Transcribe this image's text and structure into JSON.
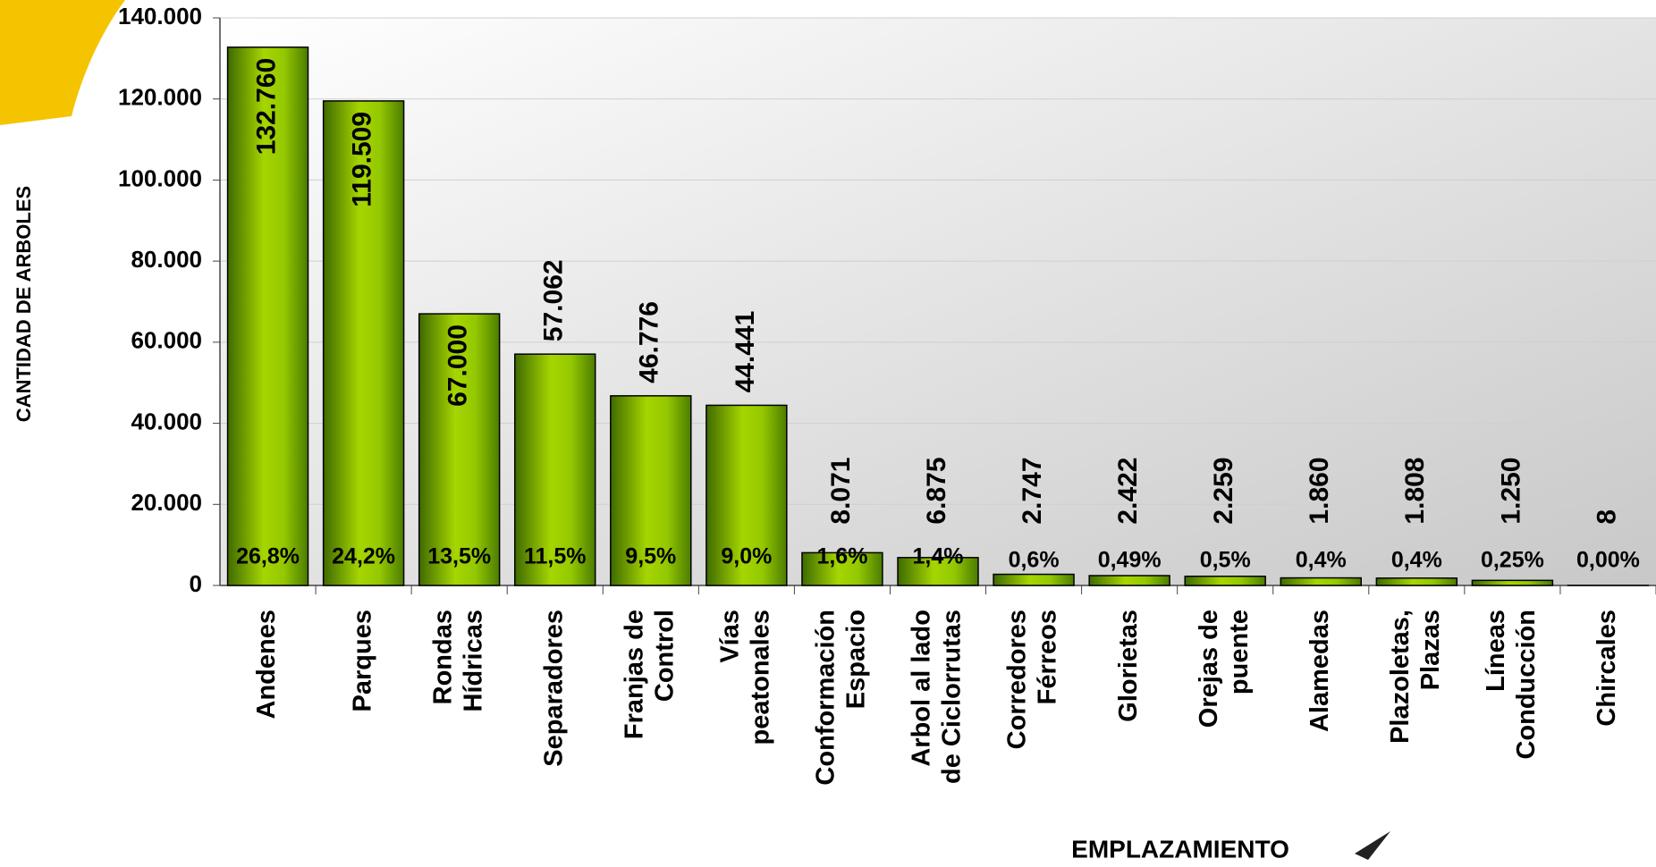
{
  "chart_data": {
    "type": "bar",
    "y_axis_label": "CANTIDAD DE ARBOLES",
    "x_axis_label": "EMPLAZAMIENTO",
    "categories": [
      [
        "Andenes"
      ],
      [
        "Parques"
      ],
      [
        "Rondas",
        "Hídricas"
      ],
      [
        "Separadores"
      ],
      [
        "Franjas de",
        "Control"
      ],
      [
        "Vías",
        "peatonales"
      ],
      [
        "Conformación",
        "Espacio"
      ],
      [
        "Arbol al lado",
        "de Ciclorrutas"
      ],
      [
        "Corredores",
        "Férreos"
      ],
      [
        "Glorietas"
      ],
      [
        "Orejas de",
        "puente"
      ],
      [
        "Alamedas"
      ],
      [
        "Plazoletas,",
        "Plazas"
      ],
      [
        "Líneas",
        "Conducción"
      ],
      [
        "Chircales"
      ]
    ],
    "values": [
      132760,
      119509,
      67000,
      57062,
      46776,
      44441,
      8071,
      6875,
      2747,
      2422,
      2259,
      1860,
      1808,
      1250,
      8
    ],
    "value_labels": [
      "132.760",
      "119.509",
      "67.000",
      "57.062",
      "46.776",
      "44.441",
      "8.071",
      "6.875",
      "2.747",
      "2.422",
      "2.259",
      "1.860",
      "1.808",
      "1.250",
      "8"
    ],
    "percent_labels": [
      "26,8%",
      "24,2%",
      "13,5%",
      "11,5%",
      "9,5%",
      "9,0%",
      "1,6%",
      "1,4%",
      "0,6%",
      "0,49%",
      "0,5%",
      "0,4%",
      "0,4%",
      "0,25%",
      "0,00%"
    ],
    "color": "#7fb200",
    "ylim": [
      0,
      140000
    ],
    "yticks": [
      0,
      {
        "value": 20000,
        "label": "20.000"
      },
      {
        "value": 40000,
        "label": "40.000"
      },
      {
        "value": 60000,
        "label": "60.000"
      },
      {
        "value": 80000,
        "label": "80.000"
      },
      {
        "value": 100000,
        "label": "100.000"
      },
      {
        "value": 120000,
        "label": "120.000"
      },
      {
        "value": 140000,
        "label": "140.000"
      }
    ],
    "grid": true
  }
}
